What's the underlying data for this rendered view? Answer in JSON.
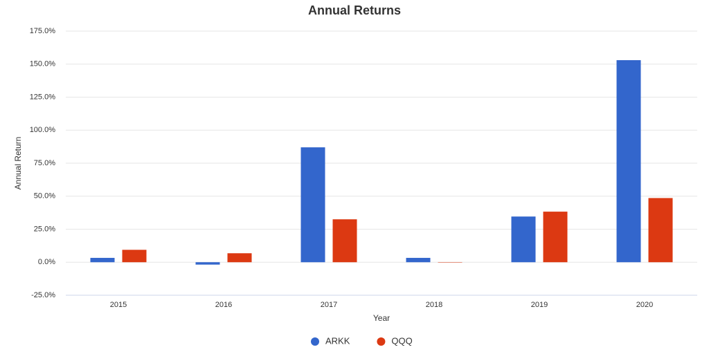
{
  "chart_data": {
    "type": "bar",
    "title": "Annual Returns",
    "x_label": "Year",
    "y_label": "Annual Return",
    "categories": [
      "2015",
      "2016",
      "2017",
      "2018",
      "2019",
      "2020"
    ],
    "series": [
      {
        "name": "ARKK",
        "color": "#3366cc",
        "values": [
          3.3,
          -1.8,
          87.0,
          3.3,
          34.6,
          153.0
        ]
      },
      {
        "name": "QQQ",
        "color": "#dc3912",
        "values": [
          9.4,
          6.8,
          32.5,
          -0.1,
          38.3,
          48.6
        ]
      }
    ],
    "ylim": [
      -25,
      175
    ],
    "yticks": [
      {
        "value": -25,
        "label": "-25.0%"
      },
      {
        "value": 0,
        "label": "0.0%"
      },
      {
        "value": 25,
        "label": "25.0%"
      },
      {
        "value": 50,
        "label": "50.0%"
      },
      {
        "value": 75,
        "label": "75.0%"
      },
      {
        "value": 100,
        "label": "100.0%"
      },
      {
        "value": 125,
        "label": "125.0%"
      },
      {
        "value": 150,
        "label": "150.0%"
      },
      {
        "value": 175,
        "label": "175.0%"
      }
    ],
    "grid": true,
    "legend": "bottom"
  }
}
